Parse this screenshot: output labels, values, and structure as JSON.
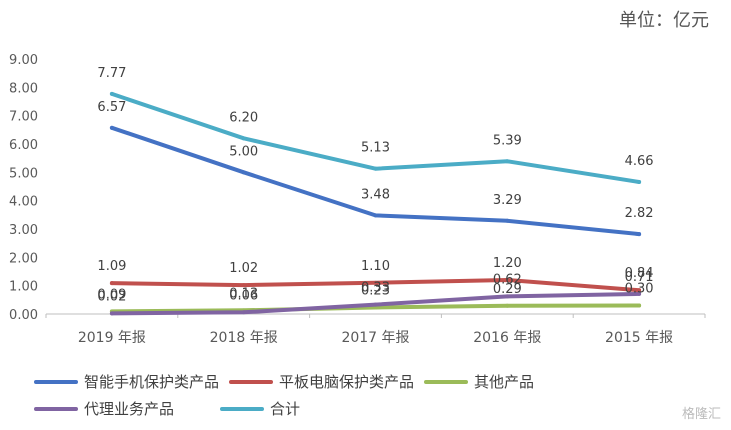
{
  "unit_label": "单位：亿元",
  "watermark": "格隆汇",
  "chart_data": {
    "type": "line",
    "categories": [
      "2019 年报",
      "2018 年报",
      "2017 年报",
      "2016 年报",
      "2015 年报"
    ],
    "ylim": [
      0,
      9
    ],
    "yticks": [
      "0.00",
      "1.00",
      "2.00",
      "3.00",
      "4.00",
      "5.00",
      "6.00",
      "7.00",
      "8.00",
      "9.00"
    ],
    "grid": false,
    "legend_position": "bottom",
    "series": [
      {
        "name": "智能手机保护类产品",
        "color": "#4472C4",
        "values": [
          6.57,
          5.0,
          3.48,
          3.29,
          2.82
        ],
        "labels": [
          "6.57",
          "5.00",
          "3.48",
          "3.29",
          "2.82"
        ]
      },
      {
        "name": "平板电脑保护类产品",
        "color": "#C0504D",
        "values": [
          1.09,
          1.02,
          1.1,
          1.2,
          0.84
        ],
        "labels": [
          "1.09",
          "1.02",
          "1.10",
          "1.20",
          "0.84"
        ]
      },
      {
        "name": "其他产品",
        "color": "#9BBB59",
        "values": [
          0.09,
          0.13,
          0.23,
          0.29,
          0.3
        ],
        "labels": [
          "0.09",
          "0.13",
          "0.23",
          "0.29",
          "0.30"
        ]
      },
      {
        "name": "代理业务产品",
        "color": "#8064A2",
        "values": [
          0.02,
          0.06,
          0.33,
          0.62,
          0.71
        ],
        "labels": [
          "0.02",
          "0.06",
          "0.33",
          "0.62",
          "0.71"
        ]
      },
      {
        "name": "合计",
        "color": "#4BACC6",
        "values": [
          7.77,
          6.2,
          5.13,
          5.39,
          4.66
        ],
        "labels": [
          "7.77",
          "6.20",
          "5.13",
          "5.39",
          "4.66"
        ]
      }
    ]
  }
}
